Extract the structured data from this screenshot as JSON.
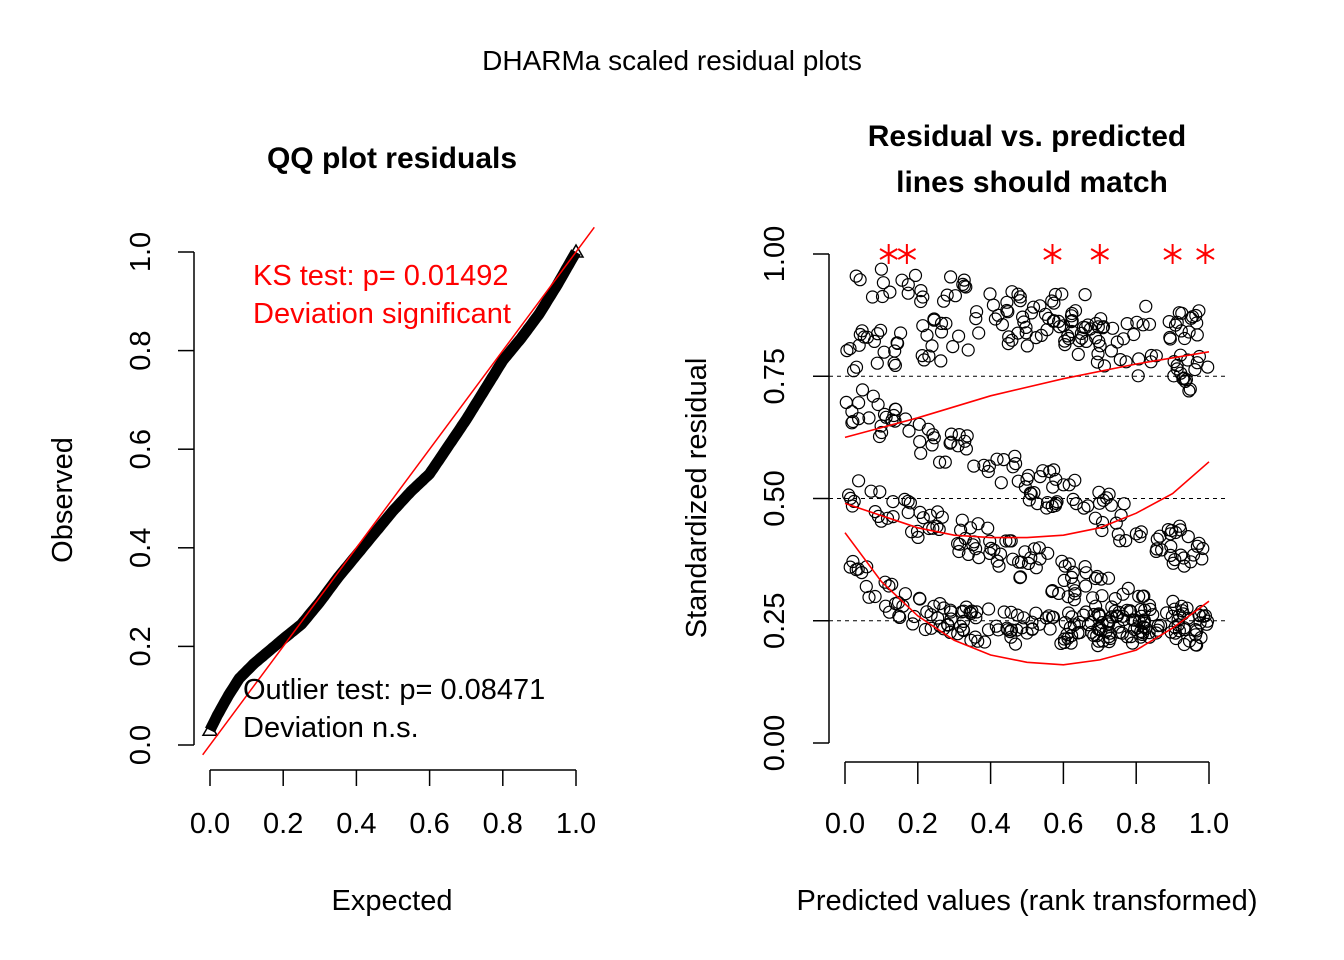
{
  "page_title": "DHARMa scaled residual plots",
  "chart_data": [
    {
      "type": "scatter",
      "title": "QQ plot residuals",
      "xlabel": "Expected",
      "ylabel": "Observed",
      "xlim": [
        0,
        1
      ],
      "ylim": [
        0,
        1
      ],
      "xticks": [
        "0.0",
        "0.2",
        "0.4",
        "0.6",
        "0.8",
        "1.0"
      ],
      "yticks": [
        "0.0",
        "0.2",
        "0.4",
        "0.6",
        "0.8",
        "1.0"
      ],
      "reference_line": {
        "from": [
          0,
          0
        ],
        "to": [
          1,
          1
        ],
        "color": "#ff0000"
      },
      "qq_curve": [
        [
          0.0,
          0.03
        ],
        [
          0.02,
          0.06
        ],
        [
          0.05,
          0.1
        ],
        [
          0.08,
          0.135
        ],
        [
          0.12,
          0.165
        ],
        [
          0.16,
          0.19
        ],
        [
          0.2,
          0.215
        ],
        [
          0.25,
          0.245
        ],
        [
          0.3,
          0.29
        ],
        [
          0.35,
          0.34
        ],
        [
          0.4,
          0.385
        ],
        [
          0.45,
          0.43
        ],
        [
          0.5,
          0.475
        ],
        [
          0.55,
          0.515
        ],
        [
          0.6,
          0.55
        ],
        [
          0.65,
          0.605
        ],
        [
          0.7,
          0.66
        ],
        [
          0.75,
          0.72
        ],
        [
          0.8,
          0.78
        ],
        [
          0.85,
          0.825
        ],
        [
          0.9,
          0.875
        ],
        [
          0.95,
          0.935
        ],
        [
          1.0,
          1.0
        ]
      ],
      "annotations": {
        "ks_line1": "KS test: p= 0.01492",
        "ks_line2": "Deviation  significant",
        "outlier_line1": "Outlier test: p= 0.08471",
        "outlier_line2": "Deviation  n.s."
      },
      "colors": {
        "significant": "#ff0000",
        "ns": "#000000"
      }
    },
    {
      "type": "scatter",
      "title_line1": "Residual vs. predicted",
      "title_line2": "lines should match",
      "xlabel": "Predicted values (rank transformed)",
      "ylabel": "Standardized residual",
      "xlim": [
        0,
        1
      ],
      "ylim": [
        0,
        1
      ],
      "xticks": [
        "0.0",
        "0.2",
        "0.4",
        "0.6",
        "0.8",
        "1.0"
      ],
      "yticks": [
        "0.00",
        "0.25",
        "0.50",
        "0.75",
        "1.00"
      ],
      "reference_lines": [
        0.25,
        0.5,
        0.75
      ],
      "outliers_x": [
        0.12,
        0.17,
        0.57,
        0.7,
        0.9,
        0.99
      ],
      "quantile_fits": [
        {
          "quantile": 0.25,
          "points": [
            [
              0.0,
              0.43
            ],
            [
              0.1,
              0.33
            ],
            [
              0.2,
              0.26
            ],
            [
              0.3,
              0.21
            ],
            [
              0.4,
              0.18
            ],
            [
              0.5,
              0.165
            ],
            [
              0.6,
              0.16
            ],
            [
              0.7,
              0.17
            ],
            [
              0.8,
              0.19
            ],
            [
              0.9,
              0.235
            ],
            [
              1.0,
              0.29
            ]
          ]
        },
        {
          "quantile": 0.5,
          "points": [
            [
              0.0,
              0.49
            ],
            [
              0.1,
              0.465
            ],
            [
              0.2,
              0.44
            ],
            [
              0.3,
              0.425
            ],
            [
              0.4,
              0.42
            ],
            [
              0.5,
              0.42
            ],
            [
              0.6,
              0.425
            ],
            [
              0.7,
              0.44
            ],
            [
              0.8,
              0.47
            ],
            [
              0.9,
              0.51
            ],
            [
              1.0,
              0.575
            ]
          ]
        },
        {
          "quantile": 0.75,
          "points": [
            [
              0.0,
              0.625
            ],
            [
              0.2,
              0.665
            ],
            [
              0.4,
              0.71
            ],
            [
              0.6,
              0.745
            ],
            [
              0.8,
              0.775
            ],
            [
              1.0,
              0.8
            ]
          ]
        }
      ],
      "colors": {
        "fit": "#ff0000",
        "points": "#000000",
        "outlier": "#ff0000"
      }
    }
  ]
}
